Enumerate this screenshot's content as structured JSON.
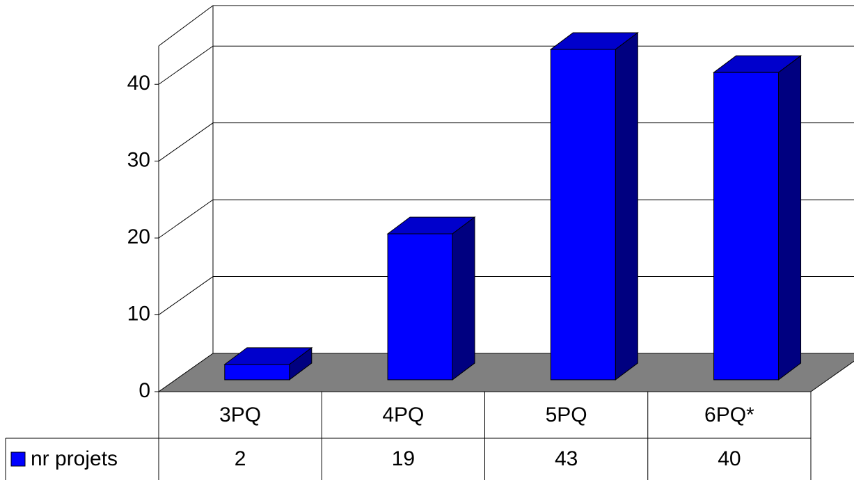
{
  "chart_data": {
    "type": "bar",
    "categories": [
      "3PQ",
      "4PQ",
      "5PQ",
      "6PQ*"
    ],
    "series": [
      {
        "name": "nr projets",
        "color": "#0000ff",
        "values": [
          2,
          19,
          43,
          40
        ]
      }
    ],
    "ylim": [
      0,
      45
    ],
    "yticks": [
      0,
      10,
      20,
      30,
      40
    ],
    "grid": true
  }
}
